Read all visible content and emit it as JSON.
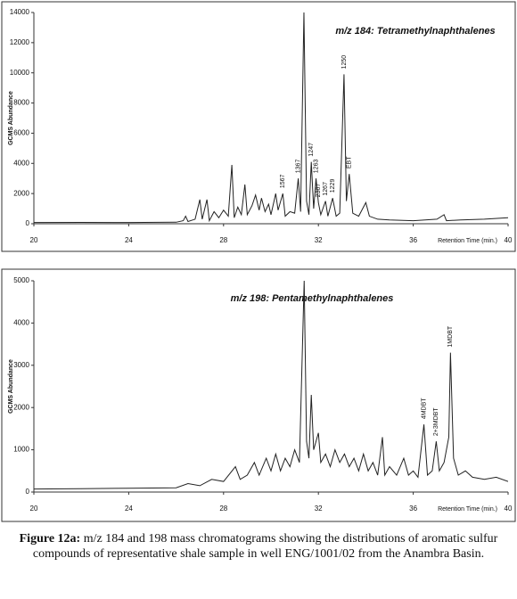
{
  "chart_data": [
    {
      "type": "line",
      "title": "m/z 184: Tetramethylnaphthalenes",
      "y_label": "GCMS Abundance",
      "x_label": "Retention Time (min.)",
      "color": "#222222",
      "xlim": [
        20,
        40
      ],
      "xticks": [
        20,
        24,
        28,
        32,
        36,
        40
      ],
      "ylim": [
        0,
        14000
      ],
      "yticks": [
        0,
        2000,
        4000,
        6000,
        8000,
        10000,
        12000,
        14000
      ],
      "x": [
        20,
        22,
        24,
        26,
        26.3,
        26.4,
        26.5,
        26.8,
        27.0,
        27.1,
        27.3,
        27.4,
        27.6,
        27.8,
        28.0,
        28.2,
        28.35,
        28.45,
        28.6,
        28.75,
        28.9,
        29.0,
        29.2,
        29.35,
        29.5,
        29.6,
        29.75,
        29.9,
        30.0,
        30.2,
        30.3,
        30.5,
        30.6,
        30.8,
        31.0,
        31.15,
        31.25,
        31.39,
        31.5,
        31.6,
        31.7,
        31.8,
        31.9,
        32.0,
        32.1,
        32.3,
        32.4,
        32.6,
        32.75,
        32.9,
        33.08,
        33.18,
        33.3,
        33.45,
        33.7,
        34.0,
        34.15,
        34.5,
        35,
        36,
        37,
        37.3,
        37.4,
        38,
        39,
        40
      ],
      "values": [
        80,
        90,
        80,
        100,
        200,
        500,
        150,
        300,
        1600,
        300,
        1600,
        200,
        800,
        400,
        900,
        500,
        3900,
        400,
        1100,
        600,
        2600,
        600,
        1200,
        1900,
        900,
        1700,
        800,
        1300,
        600,
        2000,
        900,
        2000,
        500,
        800,
        700,
        3000,
        800,
        14000,
        1500,
        600,
        4100,
        1000,
        3000,
        1400,
        600,
        1500,
        500,
        1700,
        500,
        700,
        9900,
        1500,
        3300,
        700,
        500,
        1400,
        500,
        300,
        250,
        200,
        300,
        600,
        200,
        250,
        300,
        400
      ],
      "annotations": [
        {
          "text": "1567",
          "x": 30.5
        },
        {
          "text": "1367",
          "x": 31.15
        },
        {
          "text": "1247",
          "x": 31.7
        },
        {
          "text": "1263",
          "x": 31.9
        },
        {
          "text": "2367",
          "x": 32.0
        },
        {
          "text": "1267",
          "x": 32.3
        },
        {
          "text": "1229",
          "x": 32.6
        },
        {
          "text": "1250",
          "x": 33.08
        },
        {
          "text": "EBT",
          "x": 33.3
        }
      ]
    },
    {
      "type": "line",
      "title": "m/z 198: Pentamethylnaphthalenes",
      "y_label": "GCMS Abundance",
      "x_label": "Retention Time (min.)",
      "color": "#222222",
      "xlim": [
        20,
        40
      ],
      "xticks": [
        20,
        24,
        28,
        32,
        36,
        40
      ],
      "ylim": [
        0,
        5000
      ],
      "yticks": [
        0,
        1000,
        2000,
        3000,
        4000,
        5000
      ],
      "x": [
        20,
        22,
        24,
        26,
        26.5,
        27,
        27.5,
        28,
        28.5,
        28.7,
        29,
        29.3,
        29.5,
        29.8,
        30,
        30.2,
        30.4,
        30.6,
        30.8,
        31.0,
        31.2,
        31.4,
        31.5,
        31.6,
        31.7,
        31.8,
        32.0,
        32.1,
        32.3,
        32.5,
        32.7,
        32.9,
        33.1,
        33.3,
        33.5,
        33.7,
        33.9,
        34.1,
        34.3,
        34.5,
        34.7,
        34.8,
        35.0,
        35.3,
        35.6,
        35.8,
        36.0,
        36.2,
        36.45,
        36.6,
        36.8,
        36.97,
        37.1,
        37.3,
        37.5,
        37.57,
        37.7,
        37.9,
        38.2,
        38.5,
        39,
        39.5,
        40
      ],
      "values": [
        70,
        80,
        90,
        100,
        200,
        150,
        300,
        250,
        600,
        300,
        400,
        700,
        400,
        800,
        500,
        900,
        500,
        800,
        600,
        1000,
        700,
        5000,
        1200,
        800,
        2300,
        1000,
        1400,
        700,
        900,
        600,
        1000,
        700,
        900,
        600,
        800,
        500,
        900,
        500,
        700,
        400,
        1300,
        400,
        600,
        400,
        800,
        400,
        500,
        350,
        1600,
        400,
        500,
        1200,
        500,
        700,
        1300,
        3300,
        800,
        400,
        500,
        350,
        300,
        350,
        250
      ],
      "annotations": [
        {
          "text": "4MDBT",
          "x": 36.45
        },
        {
          "text": "2+3MDBT",
          "x": 36.97
        },
        {
          "text": "1MDBT",
          "x": 37.57
        }
      ]
    }
  ],
  "caption": {
    "label": "Figure 12a:",
    "text": "m/z 184 and 198 mass chromatograms showing the distributions of aromatic sulfur compounds of representative shale sample in well ENG/1001/02 from the Anambra Basin."
  }
}
